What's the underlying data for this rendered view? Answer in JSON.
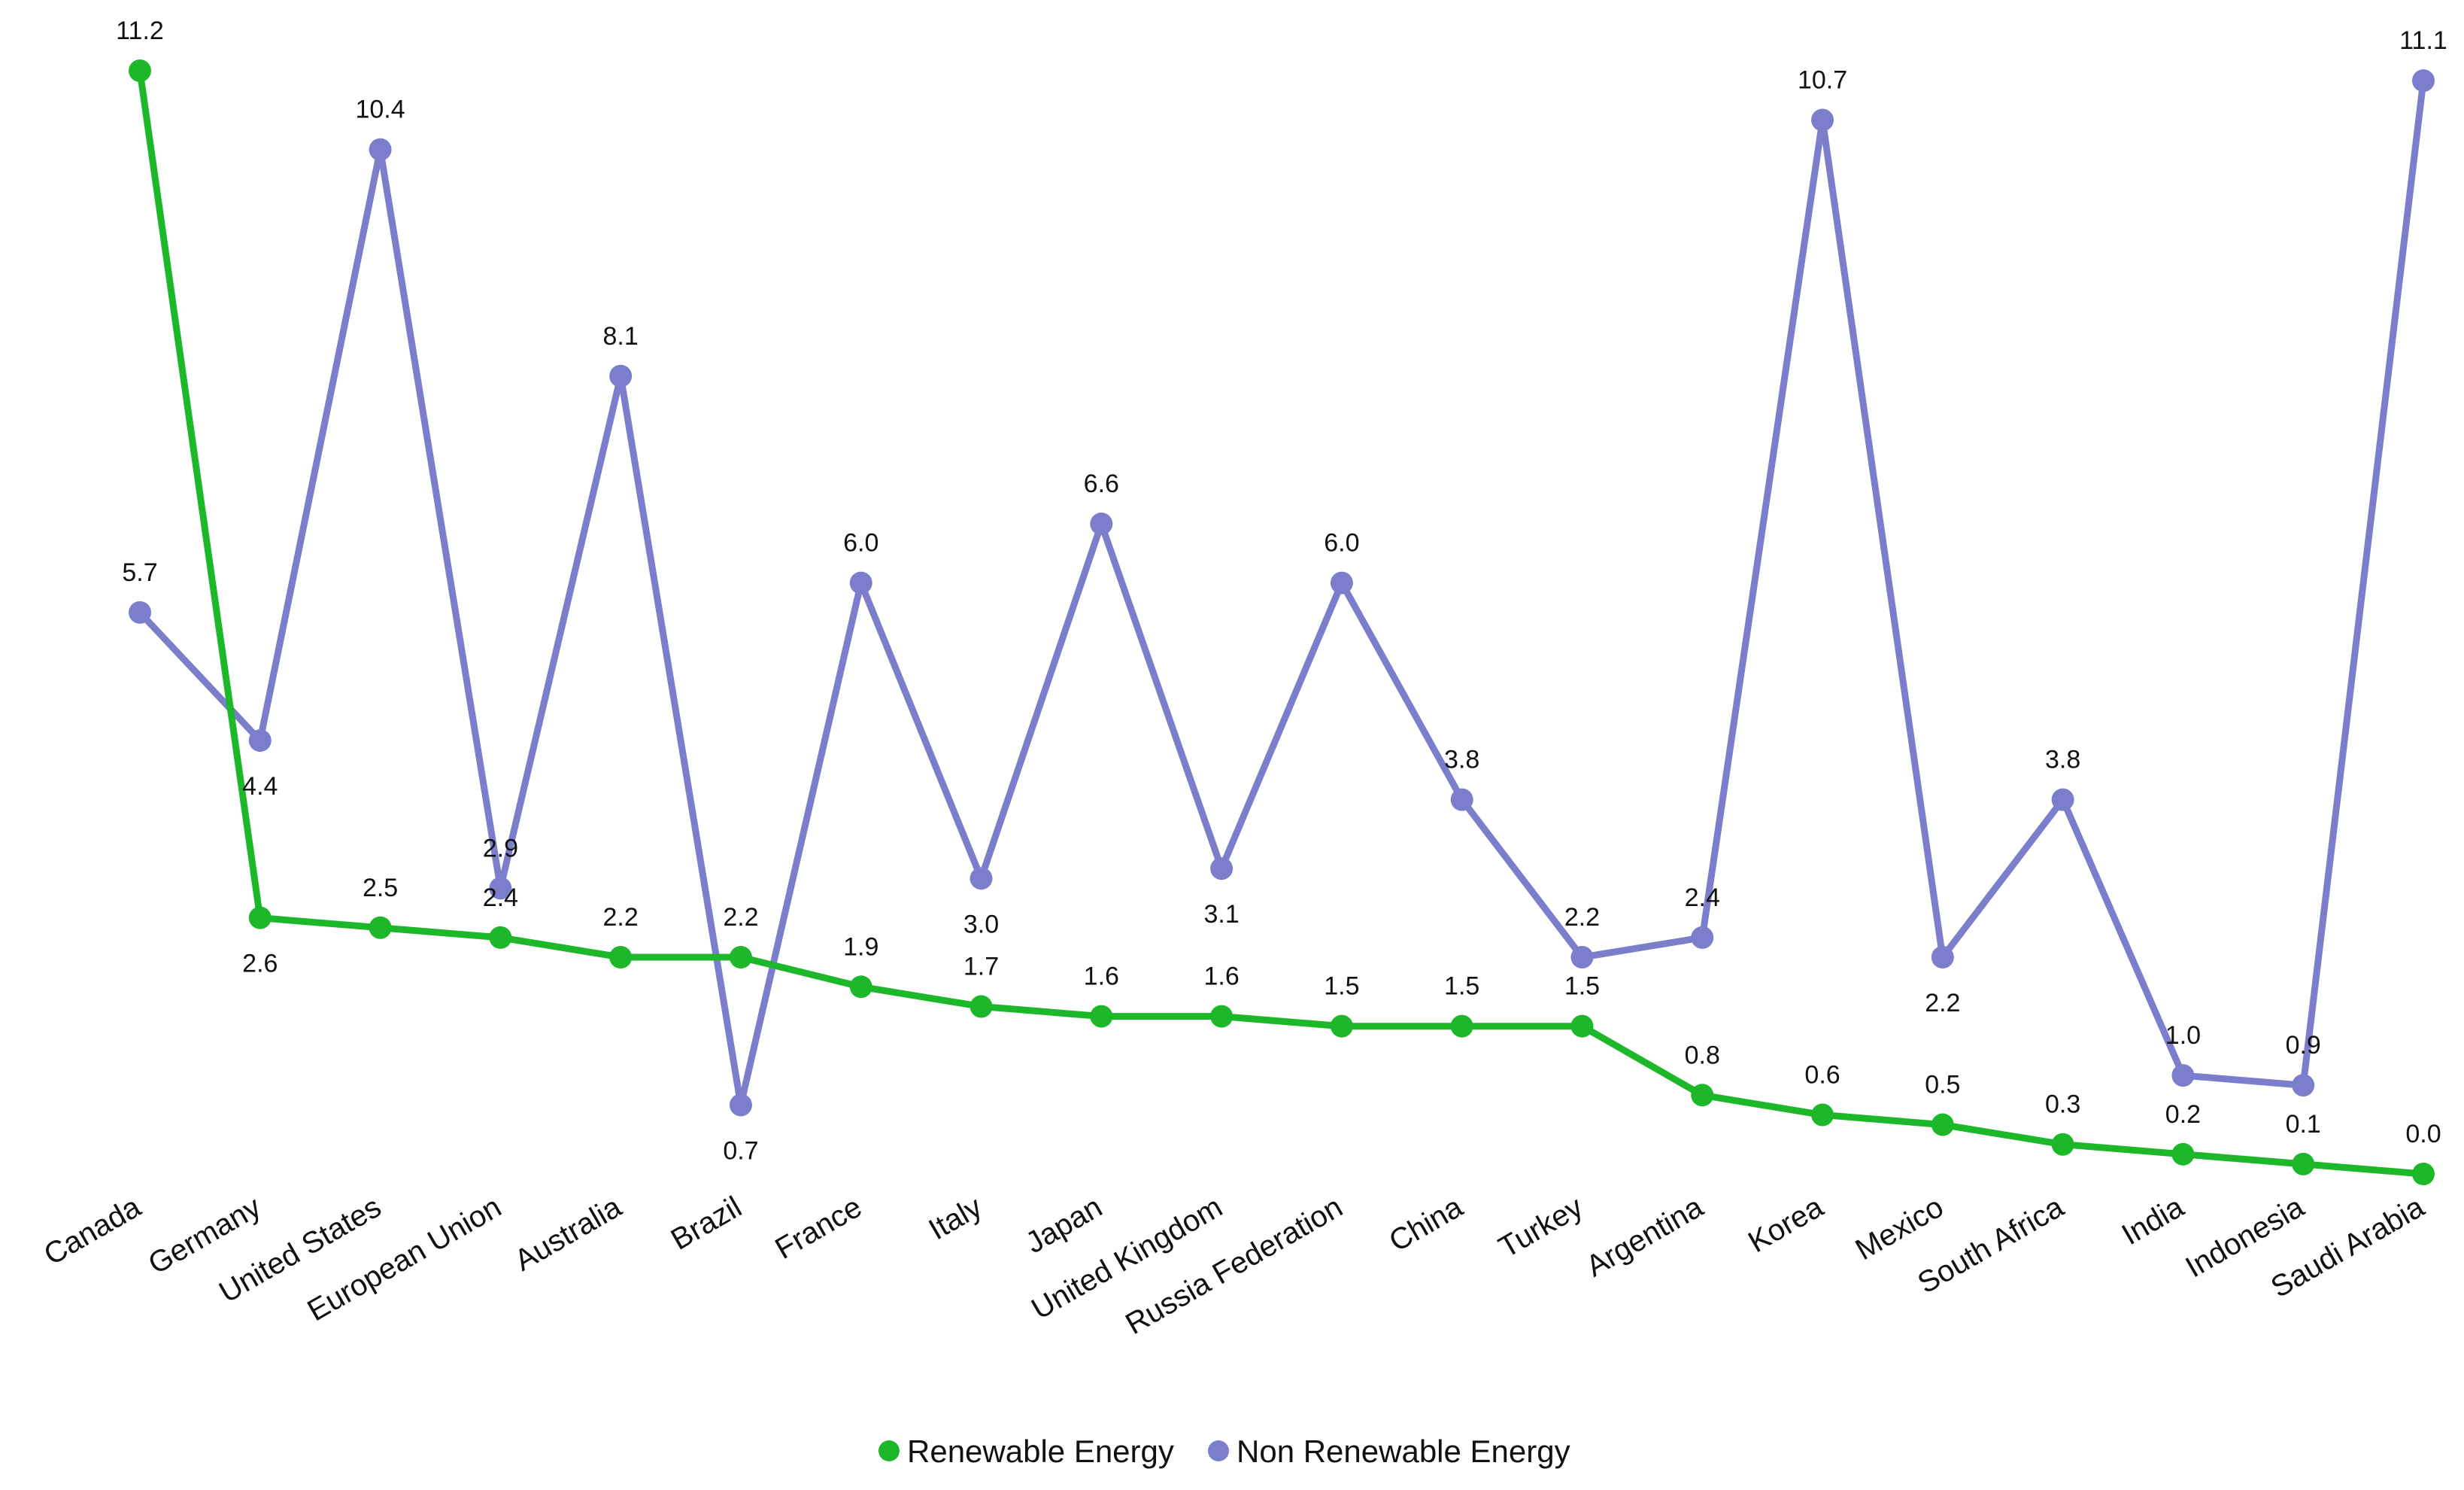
{
  "chart_data": {
    "type": "line",
    "categories": [
      "Canada",
      "Germany",
      "United States",
      "European Union",
      "Australia",
      "Brazil",
      "France",
      "Italy",
      "Japan",
      "United Kingdom",
      "Russia Federation",
      "China",
      "Turkey",
      "Argentina",
      "Korea",
      "Mexico",
      "South Africa",
      "India",
      "Indonesia",
      "Saudi Arabia"
    ],
    "series": [
      {
        "name": "Renewable Energy",
        "color": "#1db82a",
        "values": [
          11.2,
          2.6,
          2.5,
          2.4,
          2.2,
          2.2,
          1.9,
          1.7,
          1.6,
          1.6,
          1.5,
          1.5,
          1.5,
          0.8,
          0.6,
          0.5,
          0.3,
          0.2,
          0.1,
          0.0
        ],
        "labels": [
          "11.2",
          "2.6",
          "2.5",
          "2.4",
          "2.2",
          "2.2",
          "1.9",
          "1.7",
          "1.6",
          "1.6",
          "1.5",
          "1.5",
          "1.5",
          "0.8",
          "0.6",
          "0.5",
          "0.3",
          "0.2",
          "0.1",
          "0.0"
        ]
      },
      {
        "name": "Non Renewable Energy",
        "color": "#7b7fcb",
        "values": [
          5.7,
          4.4,
          10.4,
          2.9,
          8.1,
          0.7,
          6.0,
          3.0,
          6.6,
          3.1,
          6.0,
          3.8,
          2.2,
          2.4,
          10.7,
          2.2,
          3.8,
          1.0,
          0.9,
          11.1
        ],
        "labels": [
          "5.7",
          "4.4",
          "10.4",
          "2.9",
          "8.1",
          "0.7",
          "6.0",
          "3.0",
          "6.6",
          "3.1",
          "6.0",
          "3.8",
          "2.2",
          "2.4",
          "10.7",
          "2.2",
          "3.8",
          "1.0",
          "0.9",
          "11.1"
        ]
      }
    ],
    "ylim": [
      0,
      11.2
    ],
    "grid": false,
    "legend": "bottom-center"
  }
}
